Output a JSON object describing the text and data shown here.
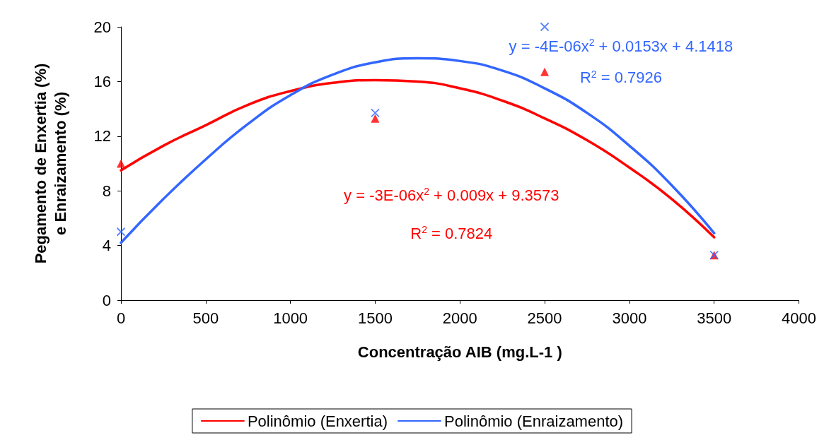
{
  "chart_data": {
    "type": "scatter",
    "xlabel": "Concentração AIB (mg.L-1 )",
    "ylabel": "Pegamento de Enxertia (%)\ne Enraizamento (%)",
    "xlim": [
      0,
      4000
    ],
    "xticks": [
      0,
      500,
      1000,
      1500,
      2000,
      2500,
      3000,
      3500,
      4000
    ],
    "ylim": [
      0,
      20
    ],
    "yticks": [
      0,
      4,
      8,
      12,
      16,
      20
    ],
    "grid": false,
    "legend": "bottom",
    "series": [
      {
        "marker": "triangle",
        "color": "#ff0000",
        "x": [
          0,
          1500,
          2500,
          3500
        ],
        "values": [
          10,
          13.3,
          16.7,
          3.3
        ]
      },
      {
        "marker": "cross",
        "color": "#3366ff",
        "x": [
          0,
          1500,
          2500,
          3500
        ],
        "values": [
          5,
          13.7,
          20,
          3.3
        ]
      },
      {
        "type": "line",
        "name": "Polinômio (Enxertia)",
        "marker": "none",
        "color": "#ff0000",
        "x": [
          0,
          250,
          500,
          750,
          1000,
          1250,
          1500,
          1750,
          2000,
          2250,
          2500,
          2750,
          3000,
          3250,
          3500
        ],
        "values": [
          9.5,
          11.3,
          12.8,
          14.3,
          15.3,
          15.9,
          16.1,
          16.0,
          15.5,
          14.6,
          13.3,
          11.7,
          9.7,
          7.4,
          4.6
        ]
      },
      {
        "type": "line",
        "name": "Polinômio (Enraizamento)",
        "marker": "none",
        "color": "#3366ff",
        "x": [
          0,
          250,
          500,
          750,
          1000,
          1250,
          1500,
          1750,
          2000,
          2250,
          2500,
          2750,
          3000,
          3250,
          3500
        ],
        "values": [
          4.2,
          7.4,
          10.3,
          12.9,
          15.0,
          16.5,
          17.4,
          17.7,
          17.5,
          16.8,
          15.5,
          13.7,
          11.3,
          8.4,
          4.9
        ]
      }
    ],
    "annotations": [
      "y = -3E-06x$^{2}$ + 0.009x + 9.3573",
      "R$^{2}$ = 0.7824",
      "y = -4E-06x$^{2}$ + 0.0153x + 4.1418",
      "R$^{2}$ = 0.7926"
    ]
  }
}
